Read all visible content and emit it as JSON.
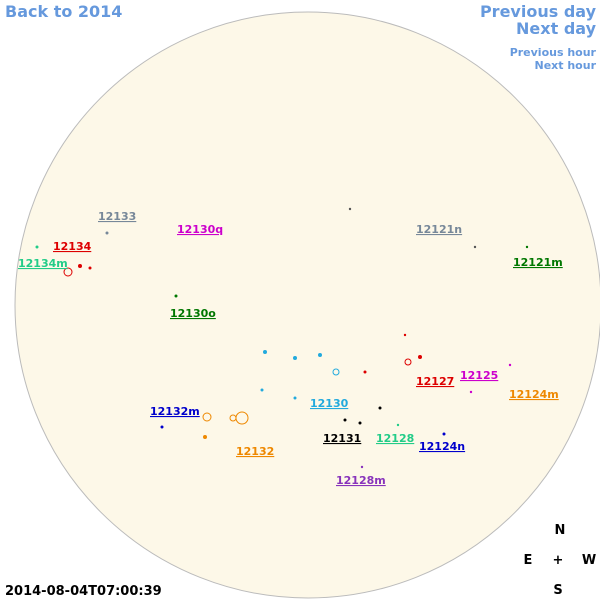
{
  "nav": {
    "back": "Back to 2014",
    "prev_day": "Previous day",
    "next_day": "Next day",
    "prev_hour": "Previous hour",
    "next_hour": "Next hour"
  },
  "regions": [
    {
      "label": "12133",
      "color": "#778899"
    },
    {
      "label": "12130q",
      "color": "#cc00cc"
    },
    {
      "label": "12121n",
      "color": "#778899"
    },
    {
      "label": "12134",
      "color": "#dd0000"
    },
    {
      "label": "12134m",
      "color": "#22cc88"
    },
    {
      "label": "12121m",
      "color": "#007700"
    },
    {
      "label": "12130o",
      "color": "#007700"
    },
    {
      "label": "12127",
      "color": "#dd0000"
    },
    {
      "label": "12125",
      "color": "#cc00cc"
    },
    {
      "label": "12124m",
      "color": "#ee8800"
    },
    {
      "label": "12130",
      "color": "#22aadd"
    },
    {
      "label": "12132m",
      "color": "#0000cc"
    },
    {
      "label": "12131",
      "color": "#000000"
    },
    {
      "label": "12128",
      "color": "#22cc88"
    },
    {
      "label": "12124n",
      "color": "#0000cc"
    },
    {
      "label": "12132",
      "color": "#ee8800"
    },
    {
      "label": "12128m",
      "color": "#8833bb"
    }
  ],
  "compass": {
    "north": "N",
    "east": "E",
    "center": "+",
    "west": "W",
    "south": "S"
  },
  "timestamp": "2014-08-04T07:00:39"
}
